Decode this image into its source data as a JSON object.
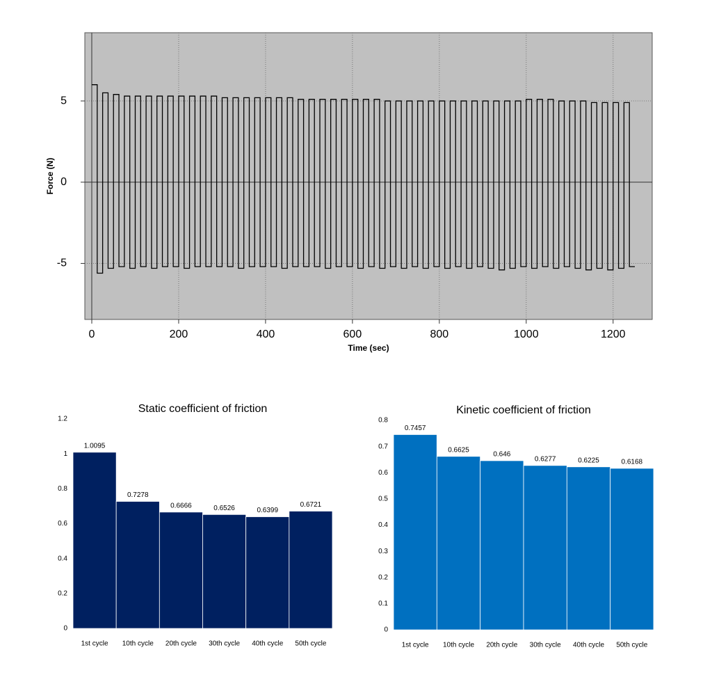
{
  "chart_data": [
    {
      "type": "line",
      "xlabel": "Time (sec)",
      "ylabel": "Force (N)",
      "xlim": [
        -16,
        1290
      ],
      "ylim": [
        -8.45,
        9.2
      ],
      "xticks": [
        0,
        200,
        400,
        600,
        800,
        1000,
        1200
      ],
      "yticks": [
        -5,
        0,
        5
      ],
      "grid": true,
      "color": "#000000",
      "background": "#c0c0c0",
      "x": [
        0,
        12.5,
        12.5,
        25,
        25,
        37.5,
        37.5,
        50,
        50,
        62.5,
        62.5,
        75,
        75,
        87.5,
        87.5,
        100,
        100,
        112.5,
        112.5,
        125,
        125,
        137.5,
        137.5,
        150,
        150,
        162.5,
        162.5,
        175,
        175,
        187.5,
        187.5,
        200,
        200,
        212.5,
        212.5,
        225,
        225,
        237.5,
        237.5,
        250,
        250,
        262.5,
        262.5,
        275,
        275,
        287.5,
        287.5,
        300,
        300,
        312.5,
        312.5,
        325,
        325,
        337.5,
        337.5,
        350,
        350,
        362.5,
        362.5,
        375,
        375,
        387.5,
        387.5,
        400,
        400,
        412.5,
        412.5,
        425,
        425,
        437.5,
        437.5,
        450,
        450,
        462.5,
        462.5,
        475,
        475,
        487.5,
        487.5,
        500,
        500,
        512.5,
        512.5,
        525,
        525,
        537.5,
        537.5,
        550,
        550,
        562.5,
        562.5,
        575,
        575,
        587.5,
        587.5,
        600,
        600,
        612.5,
        612.5,
        625,
        625,
        637.5,
        637.5,
        650,
        650,
        662.5,
        662.5,
        675,
        675,
        687.5,
        687.5,
        700,
        700,
        712.5,
        712.5,
        725,
        725,
        737.5,
        737.5,
        750,
        750,
        762.5,
        762.5,
        775,
        775,
        787.5,
        787.5,
        800,
        800,
        812.5,
        812.5,
        825,
        825,
        837.5,
        837.5,
        850,
        850,
        862.5,
        862.5,
        875,
        875,
        887.5,
        887.5,
        900,
        900,
        912.5,
        912.5,
        925,
        925,
        937.5,
        937.5,
        950,
        950,
        962.5,
        962.5,
        975,
        975,
        987.5,
        987.5,
        1000,
        1000,
        1012.5,
        1012.5,
        1025,
        1025,
        1037.5,
        1037.5,
        1050,
        1050,
        1062.5,
        1062.5,
        1075,
        1075,
        1087.5,
        1087.5,
        1100,
        1100,
        1112.5,
        1112.5,
        1125,
        1125,
        1137.5,
        1137.5,
        1150,
        1150,
        1162.5,
        1162.5,
        1175,
        1175,
        1187.5,
        1187.5,
        1200,
        1200,
        1212.5,
        1212.5,
        1225,
        1225,
        1237.5,
        1237.5,
        1250
      ],
      "values": [
        6.0,
        6.0,
        -5.6,
        -5.6,
        5.5,
        5.5,
        -5.3,
        -5.3,
        5.4,
        5.4,
        -5.2,
        -5.2,
        5.3,
        5.3,
        -5.3,
        -5.3,
        5.3,
        5.3,
        -5.2,
        -5.2,
        5.3,
        5.3,
        -5.3,
        -5.3,
        5.3,
        5.3,
        -5.2,
        -5.2,
        5.3,
        5.3,
        -5.2,
        -5.2,
        5.3,
        5.3,
        -5.3,
        -5.3,
        5.3,
        5.3,
        -5.2,
        -5.2,
        5.3,
        5.3,
        -5.2,
        -5.2,
        5.3,
        5.3,
        -5.2,
        -5.2,
        5.2,
        5.2,
        -5.2,
        -5.2,
        5.2,
        5.2,
        -5.3,
        -5.3,
        5.2,
        5.2,
        -5.2,
        -5.2,
        5.2,
        5.2,
        -5.2,
        -5.2,
        5.2,
        5.2,
        -5.2,
        -5.2,
        5.2,
        5.2,
        -5.3,
        -5.3,
        5.2,
        5.2,
        -5.2,
        -5.2,
        5.1,
        5.1,
        -5.2,
        -5.2,
        5.1,
        5.1,
        -5.2,
        -5.2,
        5.1,
        5.1,
        -5.3,
        -5.3,
        5.1,
        5.1,
        -5.2,
        -5.2,
        5.1,
        5.1,
        -5.2,
        -5.2,
        5.1,
        5.1,
        -5.3,
        -5.3,
        5.1,
        5.1,
        -5.2,
        -5.2,
        5.1,
        5.1,
        -5.3,
        -5.3,
        5.0,
        5.0,
        -5.2,
        -5.2,
        5.0,
        5.0,
        -5.3,
        -5.3,
        5.0,
        5.0,
        -5.2,
        -5.2,
        5.0,
        5.0,
        -5.3,
        -5.3,
        5.0,
        5.0,
        -5.2,
        -5.2,
        5.0,
        5.0,
        -5.3,
        -5.3,
        5.0,
        5.0,
        -5.2,
        -5.2,
        5.0,
        5.0,
        -5.3,
        -5.3,
        5.0,
        5.0,
        -5.2,
        -5.2,
        5.0,
        5.0,
        -5.3,
        -5.3,
        5.0,
        5.0,
        -5.4,
        -5.4,
        5.0,
        5.0,
        -5.3,
        -5.3,
        5.0,
        5.0,
        -5.2,
        -5.2,
        5.1,
        5.1,
        -5.3,
        -5.3,
        5.1,
        5.1,
        -5.2,
        -5.2,
        5.1,
        5.1,
        -5.3,
        -5.3,
        5.0,
        5.0,
        -5.2,
        -5.2,
        5.0,
        5.0,
        -5.3,
        -5.3,
        5.0,
        5.0,
        -5.4,
        -5.4,
        4.9,
        4.9,
        -5.3,
        -5.3,
        4.9,
        4.9,
        -5.4,
        -5.4,
        4.9,
        4.9,
        -5.3,
        -5.3,
        4.9,
        4.9,
        -5.2,
        -5.2
      ]
    },
    {
      "type": "bar",
      "title": "Static coefficient of friction",
      "categories": [
        "1st cycle",
        "10th cycle",
        "20th cycle",
        "30th cycle",
        "40th cycle",
        "50th cycle"
      ],
      "values": [
        1.0095,
        0.7278,
        0.6666,
        0.6526,
        0.6399,
        0.6721
      ],
      "color": "#002060",
      "ylim": [
        0,
        1.2
      ],
      "yticks": [
        0,
        0.2,
        0.4,
        0.6,
        0.8,
        1,
        1.2
      ]
    },
    {
      "type": "bar",
      "title": "Kinetic coefficient of friction",
      "categories": [
        "1st cycle",
        "10th cycle",
        "20th cycle",
        "30th cycle",
        "40th cycle",
        "50th cycle"
      ],
      "values": [
        0.7457,
        0.6625,
        0.646,
        0.6277,
        0.6225,
        0.6168
      ],
      "color": "#0070c0",
      "ylim": [
        0,
        0.8
      ],
      "yticks": [
        0,
        0.1,
        0.2,
        0.3,
        0.4,
        0.5,
        0.6,
        0.7,
        0.8
      ]
    }
  ]
}
